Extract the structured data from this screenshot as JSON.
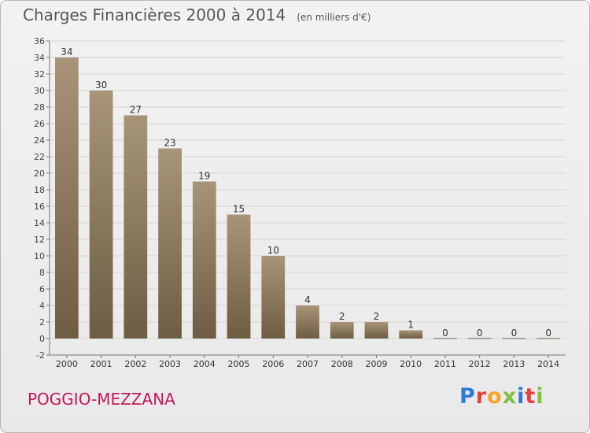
{
  "title": "Charges Financières 2000 à 2014",
  "subtitle": "(en milliers d'€)",
  "commune": "POGGIO-MEZZANA",
  "logo": {
    "text": "Proxiti",
    "colors": [
      "#2e7bd6",
      "#e8413b",
      "#f5a623",
      "#7fc242",
      "#2e7bd6",
      "#e8413b",
      "#7fc242"
    ]
  },
  "colors": {
    "bar_top": "#a89578",
    "bar_bottom": "#6e5c43",
    "grid": "#d4d4d4",
    "axis": "#777777"
  },
  "chart_data": {
    "type": "bar",
    "categories": [
      "2000",
      "2001",
      "2002",
      "2003",
      "2004",
      "2005",
      "2006",
      "2007",
      "2008",
      "2009",
      "2010",
      "2011",
      "2012",
      "2013",
      "2014"
    ],
    "values": [
      34,
      30,
      27,
      23,
      19,
      15,
      10,
      4,
      2,
      2,
      1,
      0,
      0,
      0,
      0
    ],
    "ylim": [
      -2,
      36
    ],
    "yticks": [
      -2,
      0,
      2,
      4,
      6,
      8,
      10,
      12,
      14,
      16,
      18,
      20,
      22,
      24,
      26,
      28,
      30,
      32,
      34,
      36
    ],
    "grid": true,
    "legend": "none"
  }
}
